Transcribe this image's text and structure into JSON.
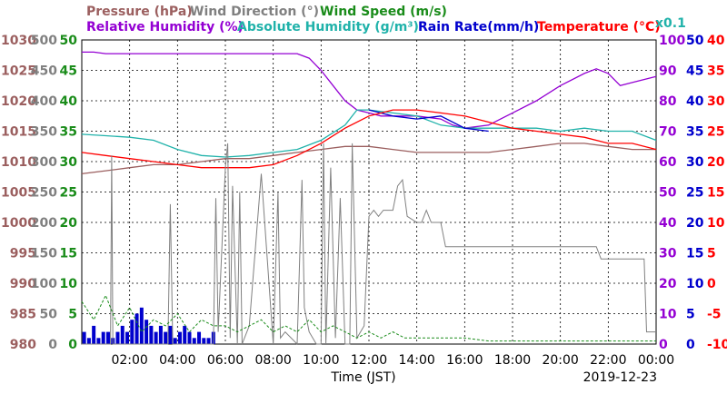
{
  "header": {
    "line1": [
      {
        "text": "Pressure (hPa)",
        "color": "#9b5f5f"
      },
      {
        "text": "Wind Direction (°)",
        "color": "#808080"
      },
      {
        "text": "Wind Speed (m/s)",
        "color": "#1a8c1a"
      }
    ],
    "line2": [
      {
        "text": "Relative Humidity (%)",
        "color": "#9400d3"
      },
      {
        "text": "Absolute Humidity (g/m³)",
        "color": "#20b2aa"
      },
      {
        "text": "Rain Rate(mm/h)",
        "color": "#0000cd"
      },
      {
        "text": "Temperature (°C)",
        "color": "#ff0000"
      }
    ],
    "scale_note": {
      "text": "x0.1",
      "color": "#20b2aa"
    }
  },
  "footer": {
    "xlabel": "Time (JST)",
    "date": "2019-12-23"
  },
  "chart_data": {
    "type": "line",
    "x_ticks": [
      "02:00",
      "04:00",
      "06:00",
      "08:00",
      "10:00",
      "12:00",
      "14:00",
      "16:00",
      "18:00",
      "20:00",
      "22:00",
      "00:00"
    ],
    "x_range_hours": [
      0,
      24
    ],
    "grid": true,
    "axes": {
      "pressure": {
        "color": "#9b5f5f",
        "ticks": [
          "1030",
          "1025",
          "1020",
          "1015",
          "1010",
          "1005",
          "1000",
          "995",
          "990",
          "985",
          "980"
        ],
        "ylim": [
          980,
          1030
        ]
      },
      "wind_direction": {
        "color": "#808080",
        "ticks": [
          "500",
          "450",
          "400",
          "350",
          "300",
          "250",
          "200",
          "150",
          "100",
          "50",
          "0"
        ],
        "ylim": [
          0,
          500
        ]
      },
      "wind_speed": {
        "color": "#1a8c1a",
        "ticks": [
          "50",
          "45",
          "40",
          "35",
          "30",
          "25",
          "20",
          "15",
          "10",
          "5",
          "0"
        ],
        "ylim": [
          0,
          50
        ]
      },
      "humidity": {
        "color": "#9400d3",
        "ticks": [
          "100",
          "90",
          "80",
          "70",
          "60",
          "50",
          "40",
          "30",
          "20",
          "10",
          "0"
        ],
        "ylim": [
          0,
          100
        ]
      },
      "rain_rate": {
        "color": "#0000cd",
        "ticks": [
          "50",
          "45",
          "40",
          "35",
          "30",
          "25",
          "20",
          "15",
          "10",
          "5",
          "0"
        ],
        "ylim": [
          0,
          50
        ]
      },
      "temperature": {
        "color": "#ff0000",
        "ticks": [
          "40",
          "35",
          "30",
          "25",
          "20",
          "15",
          "10",
          "5",
          "0",
          "-5",
          "-10"
        ],
        "ylim": [
          -10,
          40
        ]
      }
    },
    "series": [
      {
        "key": "relative_humidity",
        "color": "#9400d3",
        "axis": "humidity",
        "x": [
          0,
          0.5,
          1,
          1.5,
          2,
          3,
          4,
          5,
          6,
          7,
          8,
          9,
          9.5,
          10,
          10.5,
          11,
          11.5,
          12,
          12.5,
          13,
          14,
          15,
          15.5,
          16,
          17,
          18,
          19,
          20,
          21,
          21.5,
          22,
          22.5,
          23,
          24
        ],
        "y": [
          96,
          96,
          95.5,
          95.5,
          95.5,
          95.5,
          95.5,
          95.5,
          95.5,
          95.5,
          95.5,
          95.5,
          94,
          90,
          85,
          80,
          77,
          76,
          75,
          75,
          75,
          74,
          72,
          71,
          72,
          76,
          80,
          85,
          89,
          90.5,
          89,
          85,
          86,
          88
        ]
      },
      {
        "key": "absolute_humidity",
        "color": "#20b2aa",
        "axis": "humidity",
        "x": [
          0,
          1,
          2,
          3,
          4,
          5,
          6,
          7,
          8,
          9,
          10,
          11,
          11.5,
          12,
          13,
          14,
          15,
          16,
          17,
          18,
          19,
          20,
          21,
          22,
          23,
          24
        ],
        "y": [
          69,
          68.5,
          68,
          67,
          64,
          62,
          61.5,
          62,
          63,
          64,
          67,
          72,
          77,
          77,
          76,
          75,
          72,
          71,
          71,
          71,
          71,
          70,
          71,
          70,
          70,
          67
        ]
      },
      {
        "key": "rain_rate",
        "color": "#0000cd",
        "axis": "humidity",
        "x": [
          10,
          11,
          12,
          13,
          14,
          15,
          16,
          17,
          18,
          19,
          20,
          21,
          22,
          23,
          24
        ],
        "y": [
          null,
          null,
          77,
          75,
          74,
          75,
          71,
          70,
          null,
          null,
          null,
          null,
          null,
          null,
          null
        ]
      },
      {
        "key": "pressure",
        "color": "#9b5f5f",
        "axis": "pressure",
        "x": [
          0,
          1,
          2,
          3,
          4,
          5,
          6,
          7,
          8,
          9,
          10,
          11,
          12,
          13,
          14,
          15,
          16,
          17,
          18,
          19,
          20,
          21,
          22,
          23,
          24
        ],
        "y": [
          1008,
          1008.5,
          1009,
          1009.5,
          1009.5,
          1010,
          1010.5,
          1010.5,
          1011,
          1011.5,
          1012,
          1012.5,
          1012.5,
          1012,
          1011.5,
          1011.5,
          1011.5,
          1011.5,
          1012,
          1012.5,
          1013,
          1013,
          1012.5,
          1012,
          1012
        ]
      },
      {
        "key": "temperature",
        "color": "#ff0000",
        "axis": "temperature",
        "x": [
          0,
          1,
          2,
          3,
          4,
          5,
          6,
          7,
          8,
          9,
          10,
          11,
          12,
          13,
          14,
          15,
          16,
          17,
          18,
          19,
          20,
          21,
          22,
          23,
          24
        ],
        "y": [
          21.5,
          21,
          20.5,
          20,
          19.5,
          19,
          19,
          19,
          19.5,
          21,
          23,
          25.5,
          27.5,
          28.5,
          28.5,
          28,
          27.5,
          26.5,
          25.5,
          25,
          24.5,
          24,
          23,
          23,
          22
        ]
      },
      {
        "key": "wind_direction",
        "color": "#808080",
        "axis": "wind_direction",
        "x": [
          0,
          1,
          1.2,
          1.25,
          1.3,
          1.4,
          2,
          3,
          3.6,
          3.7,
          3.8,
          4,
          4.5,
          5,
          5.5,
          5.6,
          5.7,
          6,
          6.1,
          6.2,
          6.3,
          6.5,
          6.6,
          6.7,
          7,
          7.5,
          8,
          8.2,
          8.3,
          8.5,
          9,
          9.2,
          9.3,
          9.5,
          9.8,
          10,
          10.1,
          10.2,
          10.4,
          10.6,
          10.8,
          11,
          11.2,
          11.3,
          11.5,
          11.8,
          12,
          12.2,
          12.4,
          12.6,
          13,
          13.2,
          13.4,
          13.6,
          14,
          14.2,
          14.4,
          14.6,
          15,
          15.2,
          15.5,
          16,
          16.5,
          17,
          18,
          19,
          20,
          21,
          21.5,
          21.6,
          21.7,
          22,
          23,
          23.5,
          23.6,
          24
        ],
        "y": [
          0,
          0,
          0,
          310,
          0,
          0,
          0,
          0,
          0,
          230,
          0,
          0,
          0,
          0,
          0,
          240,
          20,
          290,
          330,
          10,
          260,
          0,
          250,
          0,
          30,
          280,
          0,
          250,
          10,
          20,
          0,
          270,
          60,
          20,
          0,
          0,
          330,
          0,
          290,
          10,
          240,
          0,
          0,
          330,
          10,
          30,
          210,
          220,
          210,
          220,
          220,
          260,
          270,
          210,
          200,
          200,
          220,
          200,
          200,
          160,
          160,
          160,
          160,
          160,
          160,
          160,
          160,
          160,
          160,
          150,
          140,
          140,
          140,
          140,
          20,
          20
        ]
      },
      {
        "key": "wind_speed",
        "color": "#1a8c1a",
        "axis": "wind_speed",
        "x": [
          0,
          0.5,
          1,
          1.5,
          2,
          2.5,
          3,
          3.5,
          4,
          4.5,
          5,
          5.5,
          6,
          6.5,
          7,
          7.5,
          8,
          8.5,
          9,
          9.5,
          10,
          10.5,
          11,
          11.5,
          12,
          12.5,
          13,
          13.5,
          14,
          14.5,
          15,
          15.5,
          16,
          17,
          18,
          19,
          20,
          21,
          22,
          23,
          24
        ],
        "y": [
          7,
          4,
          8,
          3,
          6,
          2,
          4,
          3,
          5,
          2,
          4,
          3,
          3,
          2,
          3,
          4,
          2,
          3,
          2,
          4,
          2,
          3,
          2,
          1,
          2,
          1,
          2,
          1,
          1,
          1,
          1,
          1,
          1,
          0.5,
          0.5,
          0.5,
          0.5,
          0.5,
          0.5,
          0.5,
          0.5
        ]
      }
    ],
    "rain_bars": {
      "color": "#0000cd",
      "axis": "rain_rate",
      "x": [
        0.1,
        0.3,
        0.5,
        0.7,
        0.9,
        1.1,
        1.3,
        1.5,
        1.7,
        1.9,
        2.1,
        2.3,
        2.5,
        2.7,
        2.9,
        3.1,
        3.3,
        3.5,
        3.7,
        3.9,
        4.1,
        4.3,
        4.5,
        4.7,
        4.9,
        5.1,
        5.3,
        5.5
      ],
      "y": [
        2,
        1,
        3,
        1,
        2,
        2,
        1,
        2,
        3,
        2,
        4,
        5,
        6,
        4,
        3,
        2,
        3,
        2,
        3,
        1,
        2,
        3,
        2,
        1,
        2,
        1,
        1,
        2
      ]
    }
  }
}
